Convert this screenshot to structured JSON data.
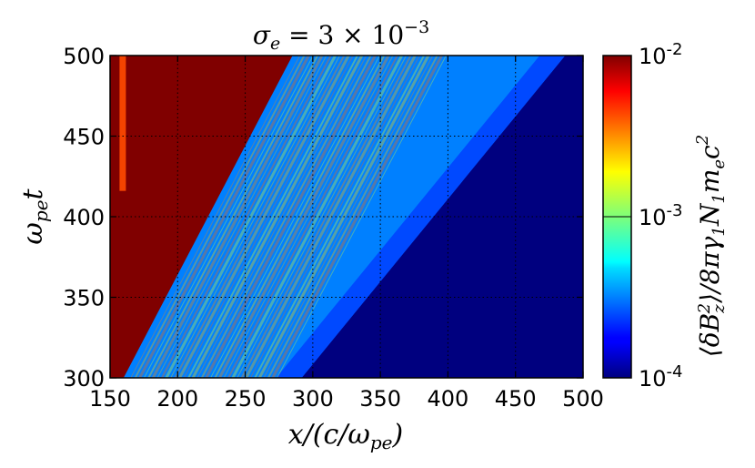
{
  "chart_data": {
    "type": "heatmap",
    "title_parts": {
      "base": "σ",
      "sub": "e",
      "mid": " = 3 × 10",
      "sup": "−3"
    },
    "xlabel_parts": {
      "pre": "x/(c/ω",
      "sub": "pe",
      "post": ")"
    },
    "ylabel_parts": {
      "base": "ω",
      "sub": "pe",
      "post": "t"
    },
    "colorbar_label": "⟨δB_z²⟩/8πγ₁N₁m_ec²",
    "colorbar_label_parts": {
      "a": "⟨δB",
      "a_sub": "z",
      "a_sup": "2",
      "b": "⟩/8πγ",
      "b_sub": "1",
      "c": "N",
      "c_sub": "1",
      "d": "m",
      "d_sub": "e",
      "e": "c",
      "e_sup": "2"
    },
    "xlim": [
      150,
      500
    ],
    "ylim": [
      300,
      500
    ],
    "xticks": [
      "150",
      "200",
      "250",
      "300",
      "350",
      "400",
      "450",
      "500"
    ],
    "yticks": [
      "300",
      "350",
      "400",
      "450",
      "500"
    ],
    "colorbar_scale": "log",
    "colorbar_range": [
      0.0001,
      0.01
    ],
    "colorbar_ticks": [
      {
        "base": "10",
        "exp": "-2",
        "value": 0.01
      },
      {
        "base": "10",
        "exp": "-3",
        "value": 0.001
      },
      {
        "base": "10",
        "exp": "-4",
        "value": 0.0001
      }
    ],
    "colormap": "jet",
    "grid": "dotted black",
    "regions": {
      "saturated_left_edge": [
        [
          160,
          300
        ],
        [
          285,
          500
        ]
      ],
      "wave_front": [
        [
          285,
          300
        ],
        [
          480,
          500
        ]
      ],
      "saturated_value": 0.01,
      "upstream_value": 0.0001
    },
    "colors": {
      "saturated": "#800000",
      "upstream": "#00007f"
    }
  }
}
